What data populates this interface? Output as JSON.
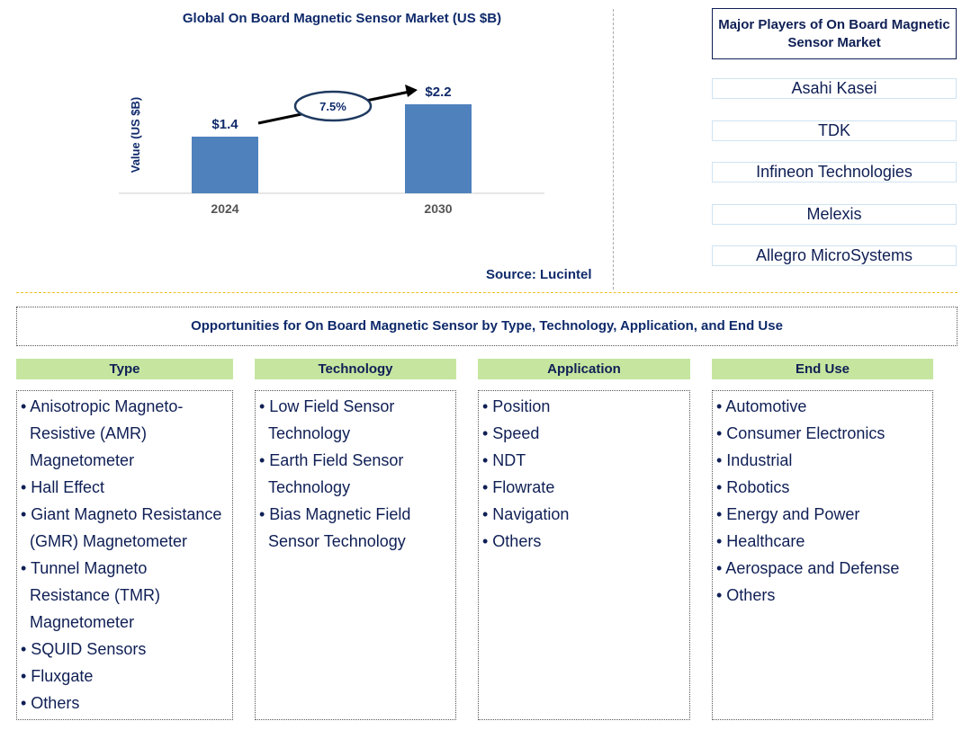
{
  "chart_data": {
    "type": "bar",
    "title": "Global On Board Magnetic Sensor Market (US $B)",
    "ylabel": "Value (US $B)",
    "xlabel": "",
    "categories": [
      "2024",
      "2030"
    ],
    "values": [
      1.4,
      2.2
    ],
    "value_labels": [
      "$1.4",
      "$2.2"
    ],
    "cagr": "7.5%",
    "ylim": [
      0,
      2.2
    ],
    "grid": false,
    "bar_color": "#4f81bd"
  },
  "source": "Source: Lucintel",
  "players": {
    "title": "Major Players of On Board Magnetic Sensor Market",
    "items": [
      "Asahi Kasei",
      "TDK",
      "Infineon Technologies",
      "Melexis",
      "Allegro MicroSystems"
    ]
  },
  "opportunities_title": "Opportunities for On Board Magnetic Sensor by Type, Technology, Application, and End Use",
  "columns": [
    {
      "header": "Type",
      "items": [
        "• Anisotropic Magneto-Resistive (AMR) Magnetometer",
        "• Hall Effect",
        "• Giant Magneto Resistance (GMR) Magnetometer",
        "• Tunnel Magneto Resistance (TMR) Magnetometer",
        "• SQUID Sensors",
        "• Fluxgate",
        "• Others"
      ]
    },
    {
      "header": "Technology",
      "items": [
        "• Low Field Sensor Technology",
        "• Earth Field Sensor Technology",
        "• Bias Magnetic Field Sensor Technology"
      ]
    },
    {
      "header": "Application",
      "items": [
        "• Position",
        "• Speed",
        "• NDT",
        "• Flowrate",
        "• Navigation",
        "• Others"
      ]
    },
    {
      "header": "End Use",
      "items": [
        "• Automotive",
        "• Consumer Electronics",
        "• Industrial",
        "• Robotics",
        "• Energy and Power",
        "• Healthcare",
        "• Aerospace and Defense",
        "• Others"
      ]
    }
  ]
}
